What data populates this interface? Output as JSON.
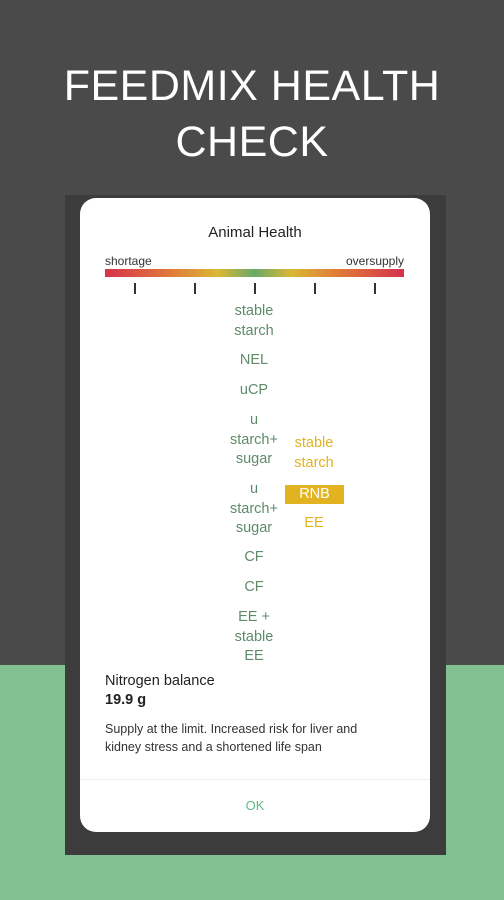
{
  "header": {
    "title": "FEEDMIX HEALTH CHECK"
  },
  "dialog": {
    "title": "Animal Health",
    "scale": {
      "left_label": "shortage",
      "right_label": "oversupply"
    },
    "center_items": [
      "stable\nstarch",
      "NEL",
      "uCP",
      "u\nstarch+\nsugar",
      "u\nstarch+\nsugar",
      "CF",
      "CF",
      "EE +\nstable\nEE"
    ],
    "right_items": [
      "stable\nstarch",
      "RNB",
      "EE"
    ],
    "detail": {
      "name": "Nitrogen balance",
      "value": "19.9 g",
      "description": "Supply at the limit. Increased risk for liver and kidney stress and a shortened life span"
    },
    "button": "OK"
  }
}
